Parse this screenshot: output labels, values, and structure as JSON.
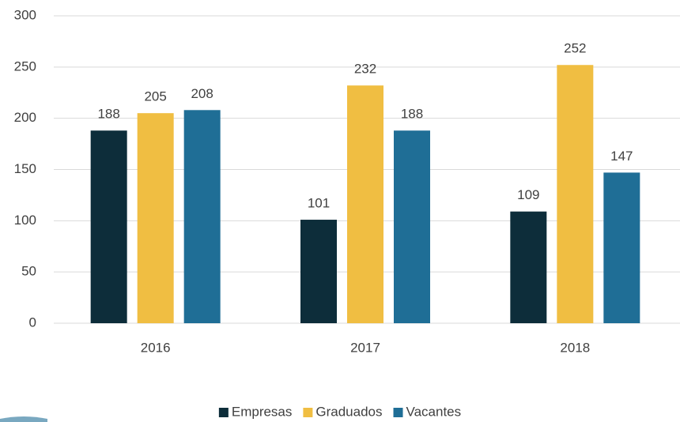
{
  "chart_data": {
    "type": "bar",
    "categories": [
      "2016",
      "2017",
      "2018"
    ],
    "series": [
      {
        "name": "Empresas",
        "color": "#0d2d3a",
        "values": [
          188,
          101,
          109
        ]
      },
      {
        "name": "Graduados",
        "color": "#f0be42",
        "values": [
          205,
          232,
          252
        ]
      },
      {
        "name": "Vacantes",
        "color": "#1f6e96",
        "values": [
          208,
          188,
          147
        ]
      }
    ],
    "ylim": [
      0,
      300
    ],
    "yticks": [
      0,
      50,
      100,
      150,
      200,
      250,
      300
    ],
    "grid": true,
    "legend": "bottom"
  }
}
